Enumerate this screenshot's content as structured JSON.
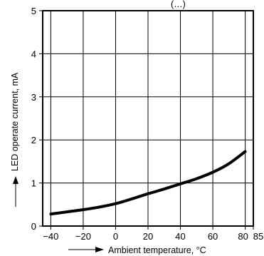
{
  "chart_data": {
    "type": "line",
    "title": "(…)",
    "xlabel": "Ambient temperature, °C",
    "ylabel": "LED operate current, mA",
    "xlim": [
      -45,
      85
    ],
    "ylim": [
      0,
      5
    ],
    "x_ticks": [
      -40,
      -20,
      0,
      20,
      40,
      60,
      80,
      85
    ],
    "x_tick_labels": [
      "−40",
      "−20",
      "0",
      "20",
      "40",
      "60",
      "80",
      "85"
    ],
    "y_ticks": [
      0,
      1,
      2,
      3,
      4,
      5
    ],
    "y_tick_labels": [
      "0",
      "1",
      "2",
      "3",
      "4",
      "5"
    ],
    "grid": true,
    "series": [
      {
        "x": [
          -40,
          -30,
          -20,
          -10,
          0,
          10,
          20,
          30,
          40,
          50,
          60,
          70,
          80
        ],
        "y": [
          0.28,
          0.33,
          0.38,
          0.44,
          0.52,
          0.63,
          0.75,
          0.86,
          0.98,
          1.1,
          1.25,
          1.45,
          1.73
        ]
      }
    ]
  }
}
